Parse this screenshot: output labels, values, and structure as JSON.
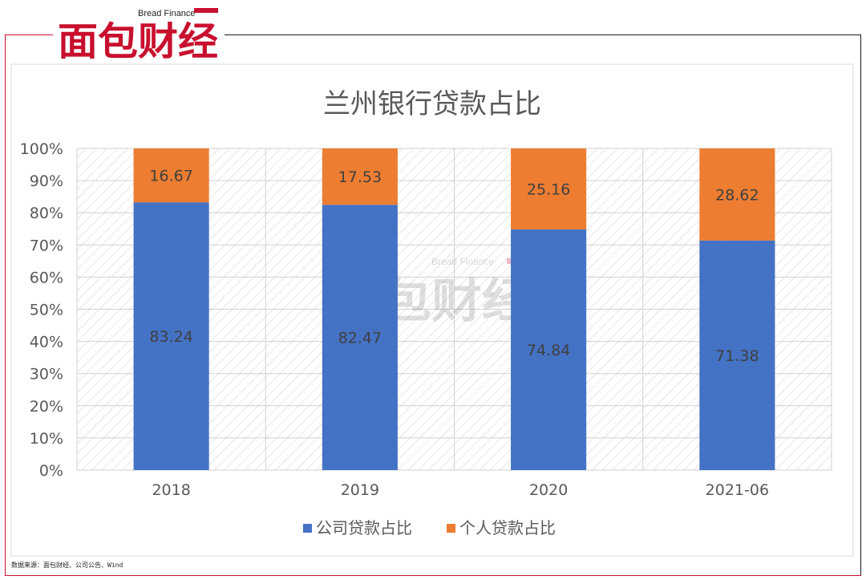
{
  "brand": {
    "name": "面包财经",
    "tagline": "Bread Finance"
  },
  "source_note": "数据来源：面包财经、公司公告、Wind",
  "colors": {
    "corporate": "#4472c4",
    "personal": "#ed7d31",
    "brand_red": "#c8102e"
  },
  "chart_data": {
    "type": "bar",
    "stacked": true,
    "title": "兰州银行贷款占比",
    "categories": [
      "2018",
      "2019",
      "2020",
      "2021-06"
    ],
    "series": [
      {
        "name": "公司贷款占比",
        "values": [
          83.24,
          82.47,
          74.84,
          71.38
        ],
        "color": "#4472c4"
      },
      {
        "name": "个人贷款占比",
        "values": [
          16.67,
          17.53,
          25.16,
          28.62
        ],
        "color": "#ed7d31"
      }
    ],
    "ylim": [
      0,
      100
    ],
    "yticks": [
      "0%",
      "10%",
      "20%",
      "30%",
      "40%",
      "50%",
      "60%",
      "70%",
      "80%",
      "90%",
      "100%"
    ],
    "grid": true,
    "legend": "bottom",
    "watermark": "面包财经"
  }
}
